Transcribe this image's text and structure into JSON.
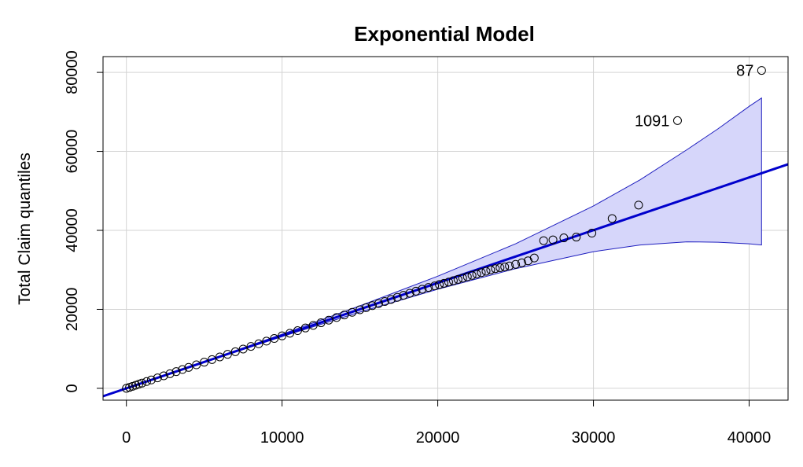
{
  "chart_data": {
    "type": "scatter",
    "title": "Exponential Model",
    "xlabel": "",
    "ylabel": "Total Claim quantiles",
    "xlim": [
      -1500,
      42500
    ],
    "ylim": [
      -3000,
      84000
    ],
    "x_ticks": [
      "0",
      "10000",
      "20000",
      "30000",
      "40000"
    ],
    "x_tick_values": [
      0,
      10000,
      20000,
      30000,
      40000
    ],
    "y_ticks": [
      "0",
      "20000",
      "40000",
      "60000",
      "80000"
    ],
    "y_tick_values": [
      0,
      20000,
      40000,
      60000,
      80000
    ],
    "grid": true,
    "colors": {
      "line": "#0000cc",
      "band_fill": "#d6d6fa",
      "band_edge": "#1f1fbf",
      "points": "#000000",
      "grid": "#d3d3d3"
    },
    "reference_line": {
      "slope": 1.335,
      "intercept": 0
    },
    "envelope": {
      "x": [
        0,
        5000,
        10000,
        15000,
        20000,
        25000,
        30000,
        33000,
        36000,
        38000,
        40000,
        40800
      ],
      "upper": [
        0,
        6800,
        13700,
        20900,
        28400,
        36600,
        46200,
        52800,
        60400,
        65700,
        71400,
        73500
      ],
      "lower": [
        0,
        6600,
        13100,
        19300,
        25100,
        30300,
        34600,
        36300,
        37100,
        37000,
        36600,
        36300
      ]
    },
    "points": {
      "x": [
        0,
        200,
        400,
        600,
        800,
        1000,
        1300,
        1600,
        2000,
        2400,
        2800,
        3200,
        3600,
        4000,
        4500,
        5000,
        5500,
        6000,
        6500,
        7000,
        7500,
        8000,
        8500,
        9000,
        9500,
        10000,
        10500,
        11000,
        11500,
        12000,
        12500,
        13000,
        13500,
        14000,
        14500,
        15000,
        15400,
        15800,
        16200,
        16600,
        17000,
        17400,
        17800,
        18200,
        18600,
        19000,
        19400,
        19800,
        20100,
        20400,
        20700,
        21000,
        21300,
        21600,
        21900,
        22200,
        22500,
        22800,
        23100,
        23400,
        23700,
        24000,
        24300,
        24600,
        25000,
        25400,
        25800,
        26200,
        26800,
        27400,
        28100,
        28900,
        29900,
        31200,
        32900,
        35400,
        40800
      ],
      "y": [
        0,
        250,
        520,
        780,
        1050,
        1320,
        1720,
        2120,
        2650,
        3180,
        3700,
        4230,
        4760,
        5300,
        5950,
        6620,
        7280,
        7950,
        8610,
        9280,
        9950,
        10620,
        11280,
        11950,
        12620,
        13290,
        13950,
        14610,
        15280,
        15940,
        16600,
        17260,
        17920,
        18580,
        19240,
        19900,
        20420,
        20950,
        21470,
        21990,
        22520,
        23040,
        23560,
        24080,
        24600,
        25100,
        25550,
        25950,
        26280,
        26600,
        26920,
        27250,
        27580,
        27900,
        28250,
        28600,
        28950,
        29300,
        29650,
        30000,
        30300,
        30550,
        30750,
        31000,
        31400,
        31800,
        32300,
        33000,
        37400,
        37600,
        38100,
        38300,
        39300,
        43000,
        46400,
        67800,
        80500
      ]
    },
    "labeled_points": [
      {
        "label": "87",
        "x": 40800,
        "y": 80500
      },
      {
        "label": "1091",
        "x": 35400,
        "y": 67800
      }
    ]
  }
}
